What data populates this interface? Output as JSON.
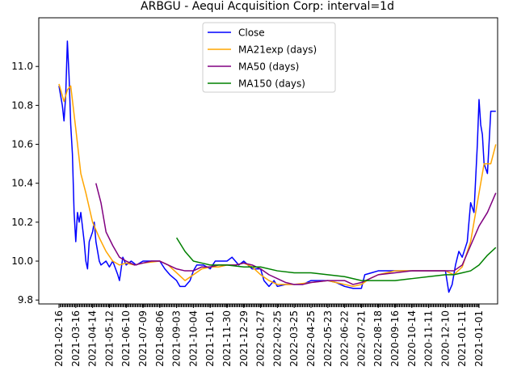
{
  "chart_data": {
    "type": "line",
    "title": "ARBGU - Aequi Acquisition Corp: interval=1d",
    "xlabel": "",
    "ylabel": "",
    "ylim": [
      9.78,
      11.25
    ],
    "grid": false,
    "legend_position": "top-center",
    "x_tick_labels": [
      "2021-02-16",
      "2021-03-16",
      "2021-04-14",
      "2021-05-12",
      "2021-06-10",
      "2021-07-09",
      "2021-08-06",
      "2021-09-03",
      "2021-10-04",
      "2021-11-01",
      "2021-11-30",
      "2021-12-29",
      "2022-01-27",
      "2022-02-25",
      "2022-03-25",
      "2022-04-25",
      "2022-05-23",
      "2022-06-22",
      "2022-07-21",
      "2022-08-18",
      "2020-09-16",
      "2020-10-14",
      "2020-11-11",
      "2020-12-10",
      "2021-01-11",
      "2021-01-01"
    ],
    "y_ticks": [
      9.8,
      10.0,
      10.2,
      10.4,
      10.6,
      10.8,
      11.0
    ],
    "y_tick_labels": [
      "9.8",
      "10.0",
      "10.2",
      "10.4",
      "10.6",
      "10.8",
      "11.0"
    ],
    "series": [
      {
        "name": "Close",
        "color": "#0000ff",
        "points": [
          [
            0,
            10.9
          ],
          [
            0.1,
            10.85
          ],
          [
            0.2,
            10.8
          ],
          [
            0.3,
            10.72
          ],
          [
            0.4,
            10.85
          ],
          [
            0.5,
            11.13
          ],
          [
            0.6,
            10.95
          ],
          [
            0.7,
            10.7
          ],
          [
            0.8,
            10.55
          ],
          [
            0.9,
            10.25
          ],
          [
            1.0,
            10.1
          ],
          [
            1.1,
            10.25
          ],
          [
            1.2,
            10.2
          ],
          [
            1.3,
            10.25
          ],
          [
            1.5,
            10.1
          ],
          [
            1.6,
            10.0
          ],
          [
            1.7,
            9.96
          ],
          [
            1.8,
            10.1
          ],
          [
            2.0,
            10.15
          ],
          [
            2.1,
            10.2
          ],
          [
            2.2,
            10.1
          ],
          [
            2.4,
            10.0
          ],
          [
            2.5,
            9.98
          ],
          [
            2.8,
            10.0
          ],
          [
            3.0,
            9.97
          ],
          [
            3.2,
            10.0
          ],
          [
            3.5,
            9.93
          ],
          [
            3.6,
            9.9
          ],
          [
            3.8,
            10.02
          ],
          [
            4.0,
            9.98
          ],
          [
            4.3,
            10.0
          ],
          [
            4.6,
            9.98
          ],
          [
            5.0,
            10.0
          ],
          [
            5.5,
            10.0
          ],
          [
            6.0,
            10.0
          ],
          [
            6.3,
            9.96
          ],
          [
            6.6,
            9.93
          ],
          [
            7.0,
            9.9
          ],
          [
            7.2,
            9.87
          ],
          [
            7.5,
            9.87
          ],
          [
            7.8,
            9.9
          ],
          [
            8.0,
            9.95
          ],
          [
            8.2,
            9.98
          ],
          [
            8.6,
            9.98
          ],
          [
            9.0,
            9.96
          ],
          [
            9.3,
            10.0
          ],
          [
            9.7,
            10.0
          ],
          [
            10.0,
            10.0
          ],
          [
            10.3,
            10.02
          ],
          [
            10.7,
            9.98
          ],
          [
            11.0,
            10.0
          ],
          [
            11.5,
            9.96
          ],
          [
            12.0,
            9.96
          ],
          [
            12.2,
            9.9
          ],
          [
            12.5,
            9.87
          ],
          [
            12.8,
            9.9
          ],
          [
            13.0,
            9.87
          ],
          [
            13.5,
            9.88
          ],
          [
            14.0,
            9.88
          ],
          [
            14.5,
            9.88
          ],
          [
            15.0,
            9.9
          ],
          [
            15.5,
            9.9
          ],
          [
            16.0,
            9.9
          ],
          [
            16.5,
            9.89
          ],
          [
            17.0,
            9.87
          ],
          [
            17.5,
            9.86
          ],
          [
            18.0,
            9.86
          ],
          [
            18.2,
            9.93
          ],
          [
            18.6,
            9.94
          ],
          [
            19.0,
            9.95
          ],
          [
            19.5,
            9.95
          ],
          [
            20.0,
            9.95
          ],
          [
            21.0,
            9.95
          ],
          [
            22.0,
            9.95
          ],
          [
            22.5,
            9.95
          ],
          [
            23.0,
            9.95
          ],
          [
            23.2,
            9.84
          ],
          [
            23.4,
            9.88
          ],
          [
            23.6,
            9.98
          ],
          [
            23.8,
            10.05
          ],
          [
            24.0,
            10.02
          ],
          [
            24.3,
            10.1
          ],
          [
            24.5,
            10.3
          ],
          [
            24.7,
            10.25
          ],
          [
            24.9,
            10.6
          ],
          [
            25.0,
            10.83
          ],
          [
            25.1,
            10.7
          ],
          [
            25.2,
            10.65
          ],
          [
            25.3,
            10.5
          ],
          [
            25.5,
            10.45
          ],
          [
            25.7,
            10.77
          ],
          [
            26.0,
            10.77
          ]
        ]
      },
      {
        "name": "MA21exp (days)",
        "color": "#ffa500",
        "points": [
          [
            0,
            10.91
          ],
          [
            0.3,
            10.82
          ],
          [
            0.5,
            10.88
          ],
          [
            0.7,
            10.9
          ],
          [
            1.0,
            10.68
          ],
          [
            1.3,
            10.45
          ],
          [
            1.6,
            10.35
          ],
          [
            2.0,
            10.2
          ],
          [
            2.4,
            10.12
          ],
          [
            2.8,
            10.05
          ],
          [
            3.2,
            10.0
          ],
          [
            3.6,
            9.98
          ],
          [
            4.0,
            9.99
          ],
          [
            4.5,
            9.98
          ],
          [
            5.0,
            9.99
          ],
          [
            6.0,
            10.0
          ],
          [
            6.5,
            9.98
          ],
          [
            7.0,
            9.94
          ],
          [
            7.5,
            9.9
          ],
          [
            8.0,
            9.93
          ],
          [
            8.5,
            9.96
          ],
          [
            9.0,
            9.97
          ],
          [
            9.5,
            9.97
          ],
          [
            10.0,
            9.98
          ],
          [
            10.5,
            9.98
          ],
          [
            11.0,
            9.99
          ],
          [
            11.5,
            9.97
          ],
          [
            12.0,
            9.93
          ],
          [
            12.5,
            9.9
          ],
          [
            13.0,
            9.88
          ],
          [
            13.5,
            9.88
          ],
          [
            14.0,
            9.88
          ],
          [
            15.0,
            9.89
          ],
          [
            16.0,
            9.9
          ],
          [
            17.0,
            9.88
          ],
          [
            17.5,
            9.87
          ],
          [
            18.0,
            9.88
          ],
          [
            18.5,
            9.91
          ],
          [
            19.0,
            9.93
          ],
          [
            19.5,
            9.94
          ],
          [
            20.0,
            9.95
          ],
          [
            21.0,
            9.95
          ],
          [
            22.0,
            9.95
          ],
          [
            23.0,
            9.95
          ],
          [
            23.5,
            9.93
          ],
          [
            24.0,
            9.97
          ],
          [
            24.5,
            10.1
          ],
          [
            25.0,
            10.35
          ],
          [
            25.3,
            10.5
          ],
          [
            25.7,
            10.5
          ],
          [
            26.0,
            10.6
          ]
        ]
      },
      {
        "name": "MA50 (days)",
        "color": "#800080",
        "points": [
          [
            2.2,
            10.4
          ],
          [
            2.5,
            10.3
          ],
          [
            2.8,
            10.15
          ],
          [
            3.2,
            10.08
          ],
          [
            3.6,
            10.02
          ],
          [
            4.0,
            10.0
          ],
          [
            4.5,
            9.98
          ],
          [
            5.0,
            9.99
          ],
          [
            5.5,
            10.0
          ],
          [
            6.0,
            10.0
          ],
          [
            7.0,
            9.96
          ],
          [
            7.5,
            9.95
          ],
          [
            8.0,
            9.95
          ],
          [
            8.5,
            9.97
          ],
          [
            9.0,
            9.97
          ],
          [
            9.5,
            9.98
          ],
          [
            10.0,
            9.98
          ],
          [
            10.5,
            9.98
          ],
          [
            11.0,
            9.99
          ],
          [
            11.5,
            9.98
          ],
          [
            12.0,
            9.96
          ],
          [
            12.5,
            9.93
          ],
          [
            13.0,
            9.91
          ],
          [
            13.5,
            9.89
          ],
          [
            14.0,
            9.88
          ],
          [
            14.5,
            9.88
          ],
          [
            15.0,
            9.89
          ],
          [
            16.0,
            9.9
          ],
          [
            17.0,
            9.9
          ],
          [
            17.5,
            9.88
          ],
          [
            18.0,
            9.89
          ],
          [
            19.0,
            9.93
          ],
          [
            20.0,
            9.94
          ],
          [
            21.0,
            9.95
          ],
          [
            22.0,
            9.95
          ],
          [
            23.0,
            9.95
          ],
          [
            23.5,
            9.95
          ],
          [
            24.0,
            9.98
          ],
          [
            24.5,
            10.08
          ],
          [
            25.0,
            10.18
          ],
          [
            25.5,
            10.25
          ],
          [
            26.0,
            10.35
          ]
        ]
      },
      {
        "name": "MA150 (days)",
        "color": "#008000",
        "points": [
          [
            7.0,
            10.12
          ],
          [
            7.5,
            10.05
          ],
          [
            8.0,
            10.0
          ],
          [
            8.5,
            9.99
          ],
          [
            9.0,
            9.98
          ],
          [
            10.0,
            9.98
          ],
          [
            11.0,
            9.97
          ],
          [
            12.0,
            9.97
          ],
          [
            13.0,
            9.95
          ],
          [
            14.0,
            9.94
          ],
          [
            15.0,
            9.94
          ],
          [
            16.0,
            9.93
          ],
          [
            17.0,
            9.92
          ],
          [
            18.0,
            9.9
          ],
          [
            19.0,
            9.9
          ],
          [
            20.0,
            9.9
          ],
          [
            21.0,
            9.91
          ],
          [
            22.0,
            9.92
          ],
          [
            23.0,
            9.93
          ],
          [
            23.5,
            9.93
          ],
          [
            24.0,
            9.94
          ],
          [
            24.5,
            9.95
          ],
          [
            25.0,
            9.98
          ],
          [
            25.5,
            10.03
          ],
          [
            26.0,
            10.07
          ]
        ]
      }
    ]
  }
}
